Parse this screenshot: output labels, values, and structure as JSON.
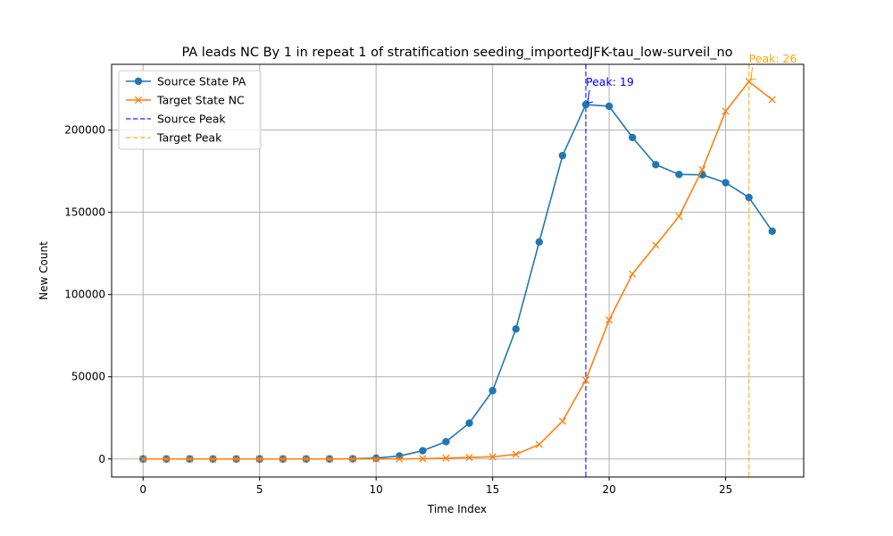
{
  "chart_data": {
    "type": "line",
    "title": "PA leads NC By 1 in repeat 1 of stratification seeding_importedJFK-tau_low-surveil_no",
    "xlabel": "Time Index",
    "ylabel": "New Count",
    "xlim": [
      -1.35,
      28.35
    ],
    "ylim": [
      -11000,
      240000
    ],
    "xticks": [
      0,
      5,
      10,
      15,
      20,
      25
    ],
    "yticks": [
      0,
      50000,
      100000,
      150000,
      200000
    ],
    "grid": true,
    "legend_position": "top-left",
    "x": [
      0,
      1,
      2,
      3,
      4,
      5,
      6,
      7,
      8,
      9,
      10,
      11,
      12,
      13,
      14,
      15,
      16,
      17,
      18,
      19,
      20,
      21,
      22,
      23,
      24,
      25,
      26,
      27
    ],
    "series": [
      {
        "name": "Source State PA",
        "color": "#1f77b4",
        "marker": "circle",
        "values": [
          0,
          0,
          0,
          0,
          0,
          0,
          0,
          0,
          0,
          100,
          500,
          1800,
          5000,
          10500,
          21800,
          41500,
          79000,
          132000,
          184500,
          215500,
          214500,
          195500,
          179000,
          173000,
          172800,
          168000,
          159000,
          138500
        ]
      },
      {
        "name": "Target State NC",
        "color": "#ff7f0e",
        "marker": "x",
        "values": [
          0,
          0,
          0,
          0,
          0,
          0,
          0,
          0,
          0,
          0,
          0,
          0,
          200,
          500,
          900,
          1300,
          2800,
          8800,
          23000,
          48000,
          84500,
          112500,
          130000,
          147500,
          176000,
          211500,
          229500,
          218500
        ]
      }
    ],
    "vlines": [
      {
        "name": "Source Peak",
        "x": 19,
        "color": "#0000ff"
      },
      {
        "name": "Target Peak",
        "x": 26,
        "color": "#ffa500"
      }
    ],
    "annotations": [
      {
        "text": "Peak: 19",
        "x": 19,
        "y": 215500,
        "color": "#0000ff",
        "text_x": 19,
        "text_y": 227000
      },
      {
        "text": "Peak: 26",
        "x": 26,
        "y": 229500,
        "color": "#ffa500",
        "text_x": 26,
        "text_y": 241000
      }
    ]
  }
}
